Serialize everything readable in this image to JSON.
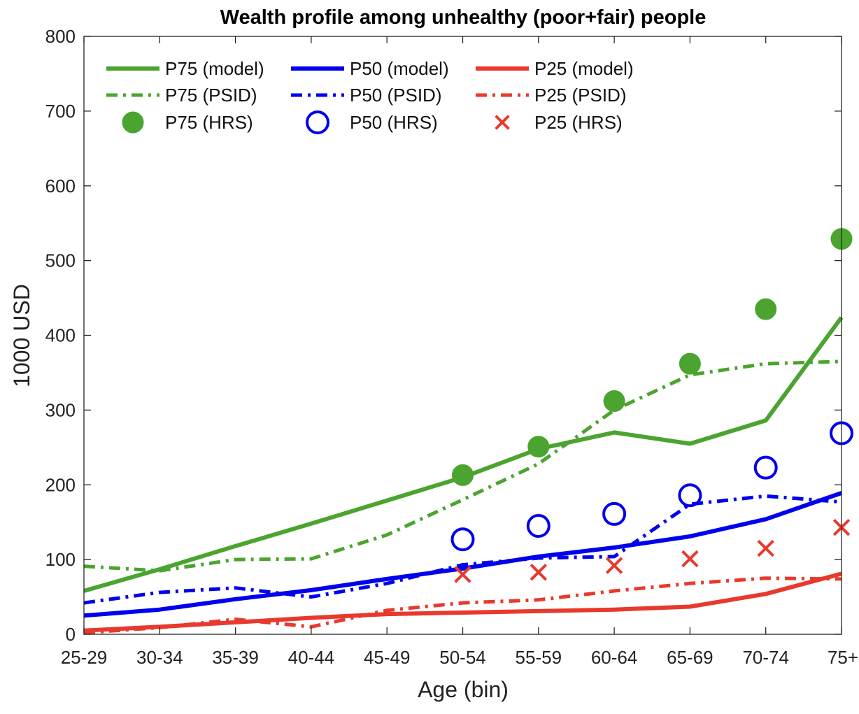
{
  "chart_data": {
    "type": "line",
    "title": "Wealth profile among unhealthy (poor+fair) people",
    "xlabel": "Age (bin)",
    "ylabel": "1000 USD",
    "ylim": [
      0,
      800
    ],
    "yticks": [
      0,
      100,
      200,
      300,
      400,
      500,
      600,
      700,
      800
    ],
    "categories": [
      "25-29",
      "30-34",
      "35-39",
      "40-44",
      "45-49",
      "50-54",
      "55-59",
      "60-64",
      "65-69",
      "70-74",
      "75+"
    ],
    "grid": false,
    "legend_position": "top-left",
    "series": [
      {
        "name": "P75 (model)",
        "style": "solid",
        "marker": "none",
        "color": "#4aa42f",
        "values": [
          58,
          87,
          118,
          148,
          179,
          210,
          248,
          270,
          255,
          286,
          424
        ]
      },
      {
        "name": "P50 (model)",
        "style": "solid",
        "marker": "none",
        "color": "#0000ee",
        "values": [
          25,
          33,
          47,
          59,
          74,
          88,
          104,
          116,
          131,
          154,
          189
        ]
      },
      {
        "name": "P25 (model)",
        "style": "solid",
        "marker": "none",
        "color": "#e8392c",
        "values": [
          5,
          10,
          16,
          22,
          27,
          29,
          31,
          33,
          37,
          54,
          81
        ]
      },
      {
        "name": "P75 (PSID)",
        "style": "dashdot",
        "marker": "none",
        "color": "#4aa42f",
        "values": [
          91,
          85,
          100,
          101,
          133,
          180,
          228,
          300,
          347,
          362,
          365
        ]
      },
      {
        "name": "P50 (PSID)",
        "style": "dashdot",
        "marker": "none",
        "color": "#0000ee",
        "values": [
          42,
          56,
          62,
          50,
          68,
          93,
          102,
          104,
          174,
          185,
          177
        ]
      },
      {
        "name": "P25 (PSID)",
        "style": "dashdot",
        "marker": "none",
        "color": "#e8392c",
        "values": [
          2,
          9,
          20,
          10,
          32,
          42,
          46,
          58,
          68,
          75,
          74
        ]
      },
      {
        "name": "P75 (HRS)",
        "style": "none",
        "marker": "filled-circle",
        "color": "#4aa42f",
        "values": [
          null,
          null,
          null,
          null,
          null,
          213,
          251,
          312,
          362,
          435,
          529
        ]
      },
      {
        "name": "P50 (HRS)",
        "style": "none",
        "marker": "open-circle",
        "color": "#0000ee",
        "values": [
          null,
          null,
          null,
          null,
          null,
          127,
          145,
          161,
          186,
          223,
          269
        ]
      },
      {
        "name": "P25 (HRS)",
        "style": "none",
        "marker": "x",
        "color": "#e8392c",
        "values": [
          null,
          null,
          null,
          null,
          null,
          80,
          83,
          92,
          101,
          115,
          143
        ]
      }
    ],
    "legend_order": [
      "P75 (model)",
      "P50 (model)",
      "P25 (model)",
      "P75 (PSID)",
      "P50 (PSID)",
      "P25 (PSID)",
      "P75 (HRS)",
      "P50 (HRS)",
      "P25 (HRS)"
    ]
  }
}
